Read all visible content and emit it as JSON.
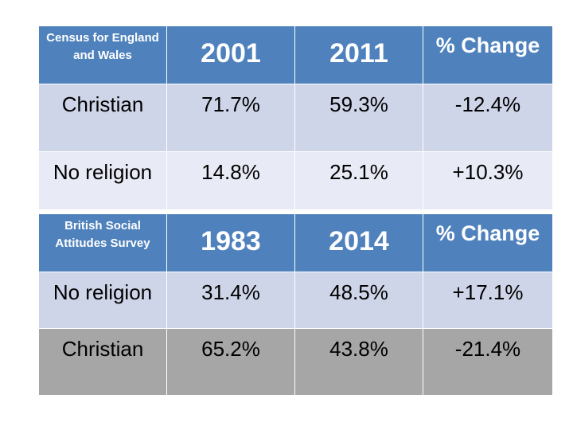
{
  "tables": [
    {
      "header": {
        "label": "Census for England and Wales",
        "col1": "2001",
        "col2": "2011",
        "col3": "% Change"
      },
      "rows": [
        {
          "label": "Christian",
          "v1": "71.7%",
          "v2": "59.3%",
          "v3": "-12.4%"
        },
        {
          "label": "No religion",
          "v1": "14.8%",
          "v2": "25.1%",
          "v3": "+10.3%"
        }
      ]
    },
    {
      "header": {
        "label": "British Social Attitudes Survey",
        "col1": "1983",
        "col2": "2014",
        "col3": "% Change"
      },
      "rows": [
        {
          "label": "No religion",
          "v1": "31.4%",
          "v2": "48.5%",
          "v3": "+17.1%"
        },
        {
          "label": "Christian",
          "v1": "65.2%",
          "v2": "43.8%",
          "v3": "-21.4%"
        }
      ]
    }
  ],
  "colors": {
    "header_bg": "#4f81bd",
    "row_dark": "#cfd5e8",
    "row_light": "#e8ebf5",
    "row_gray": "#a6a6a6"
  }
}
